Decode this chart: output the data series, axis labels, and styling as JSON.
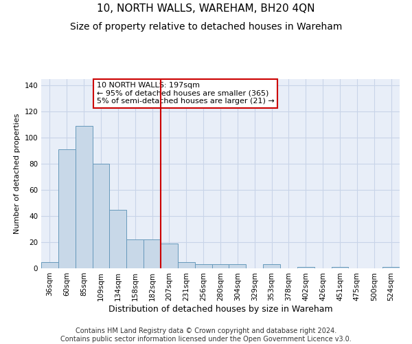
{
  "title": "10, NORTH WALLS, WAREHAM, BH20 4QN",
  "subtitle": "Size of property relative to detached houses in Wareham",
  "xlabel": "Distribution of detached houses by size in Wareham",
  "ylabel": "Number of detached properties",
  "categories": [
    "36sqm",
    "60sqm",
    "85sqm",
    "109sqm",
    "134sqm",
    "158sqm",
    "182sqm",
    "207sqm",
    "231sqm",
    "256sqm",
    "280sqm",
    "304sqm",
    "329sqm",
    "353sqm",
    "378sqm",
    "402sqm",
    "426sqm",
    "451sqm",
    "475sqm",
    "500sqm",
    "524sqm"
  ],
  "values": [
    5,
    91,
    109,
    80,
    45,
    22,
    22,
    19,
    5,
    3,
    3,
    3,
    0,
    3,
    0,
    1,
    0,
    1,
    0,
    0,
    1
  ],
  "bar_color": "#c8d8e8",
  "bar_edge_color": "#6699bb",
  "vline_x": 6.5,
  "vline_color": "#cc0000",
  "annotation_text": "10 NORTH WALLS: 197sqm\n← 95% of detached houses are smaller (365)\n5% of semi-detached houses are larger (21) →",
  "annotation_box_color": "#ffffff",
  "annotation_box_edge_color": "#cc0000",
  "ylim": [
    0,
    145
  ],
  "yticks": [
    0,
    20,
    40,
    60,
    80,
    100,
    120,
    140
  ],
  "grid_color": "#c8d4e8",
  "bg_color": "#e8eef8",
  "footer_text": "Contains HM Land Registry data © Crown copyright and database right 2024.\nContains public sector information licensed under the Open Government Licence v3.0.",
  "title_fontsize": 11,
  "subtitle_fontsize": 10,
  "xlabel_fontsize": 9,
  "ylabel_fontsize": 8,
  "tick_fontsize": 7.5,
  "footer_fontsize": 7,
  "annot_fontsize": 8
}
